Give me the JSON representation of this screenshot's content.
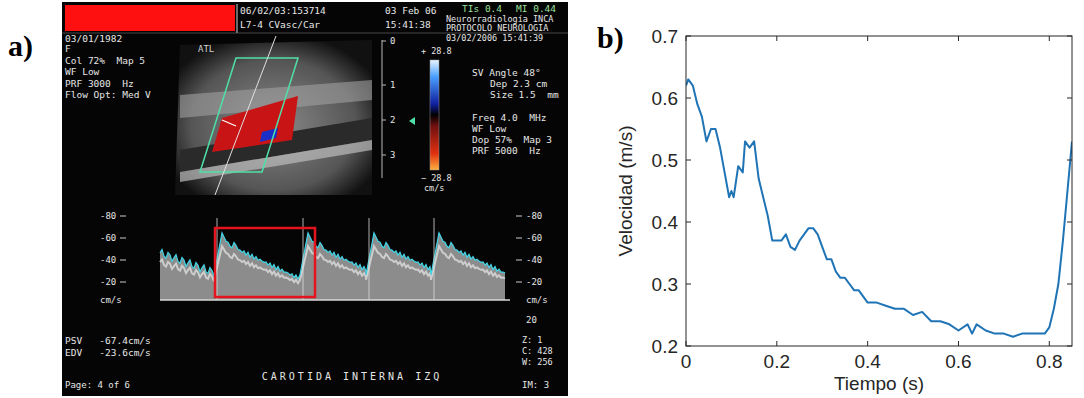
{
  "panel_labels": [
    "a)",
    "b)"
  ],
  "ultrasound": {
    "header": [
      "06/02/03:153714",
      "L7-4 CVasc/Car",
      "03 Feb 06",
      "15:41:38",
      "TIs 0.4",
      "MI 0.44",
      "Neurorradiología INCA",
      "PROTOCOLO NEUROLOGIA",
      "03/02/2006 15:41:39"
    ],
    "patient": [
      "03/01/1982",
      "F",
      "Col 72%  Map 5",
      "WF Low",
      "PRF 3000  Hz",
      "Flow Opt: Med V"
    ],
    "logo": "ATL",
    "depth_scale": [
      "0",
      "1",
      "2",
      "3"
    ],
    "color_bar": [
      "+ 28.8",
      "− 28.8",
      "cm/s"
    ],
    "doppler_settings": [
      "SV Angle 48°",
      "Dep 2.3 cm",
      "Size 1.5  mm",
      "Freq 4.0  MHz",
      "WF Low",
      "Dop 57%  Map 3",
      "PRF 5000  Hz"
    ],
    "spectrum_scale_left": [
      "-80",
      "-60",
      "-40",
      "-20",
      "cm/s"
    ],
    "spectrum_scale_right": [
      "-80",
      "-60",
      "-40",
      "-20",
      "cm/s",
      "20"
    ],
    "measurements": [
      "PSV   -67.4cm/s",
      "EDV   -23.6cm/s"
    ],
    "display": [
      "Z: 1",
      "C: 428",
      "W: 256"
    ],
    "vessel": "CAROTIDA INTERNA IZQ",
    "page": "Page: 4 of 6",
    "image_number": "IM: 3"
  },
  "chart_data": {
    "type": "line",
    "x_label": "Tiempo (s)",
    "y_label": "Velocidad (m/s)",
    "x": [
      0,
      0.005,
      0.015,
      0.025,
      0.035,
      0.045,
      0.055,
      0.065,
      0.075,
      0.085,
      0.095,
      0.1,
      0.105,
      0.115,
      0.125,
      0.13,
      0.14,
      0.15,
      0.16,
      0.17,
      0.18,
      0.19,
      0.2,
      0.21,
      0.22,
      0.23,
      0.24,
      0.25,
      0.26,
      0.27,
      0.28,
      0.29,
      0.3,
      0.31,
      0.32,
      0.33,
      0.34,
      0.35,
      0.36,
      0.37,
      0.38,
      0.39,
      0.4,
      0.42,
      0.44,
      0.46,
      0.48,
      0.5,
      0.52,
      0.54,
      0.56,
      0.58,
      0.6,
      0.62,
      0.63,
      0.64,
      0.66,
      0.68,
      0.7,
      0.72,
      0.74,
      0.76,
      0.78,
      0.79,
      0.8,
      0.81,
      0.82,
      0.83,
      0.84,
      0.85
    ],
    "values": [
      0.62,
      0.63,
      0.62,
      0.59,
      0.57,
      0.53,
      0.55,
      0.55,
      0.52,
      0.48,
      0.44,
      0.45,
      0.44,
      0.49,
      0.48,
      0.53,
      0.52,
      0.53,
      0.47,
      0.44,
      0.41,
      0.37,
      0.37,
      0.37,
      0.38,
      0.36,
      0.355,
      0.37,
      0.38,
      0.39,
      0.39,
      0.38,
      0.36,
      0.34,
      0.34,
      0.32,
      0.31,
      0.31,
      0.3,
      0.29,
      0.29,
      0.28,
      0.27,
      0.27,
      0.265,
      0.26,
      0.26,
      0.25,
      0.255,
      0.24,
      0.24,
      0.235,
      0.225,
      0.235,
      0.22,
      0.235,
      0.225,
      0.22,
      0.22,
      0.215,
      0.22,
      0.22,
      0.22,
      0.22,
      0.23,
      0.26,
      0.3,
      0.37,
      0.45,
      0.53
    ],
    "color": "#1f74b6",
    "xlim": [
      0,
      0.85
    ],
    "ylim": [
      0.2,
      0.7
    ],
    "xticks": [
      0,
      0.2,
      0.4,
      0.6,
      0.8
    ],
    "yticks": [
      0.2,
      0.3,
      0.4,
      0.5,
      0.6,
      0.7
    ],
    "grid": false
  }
}
